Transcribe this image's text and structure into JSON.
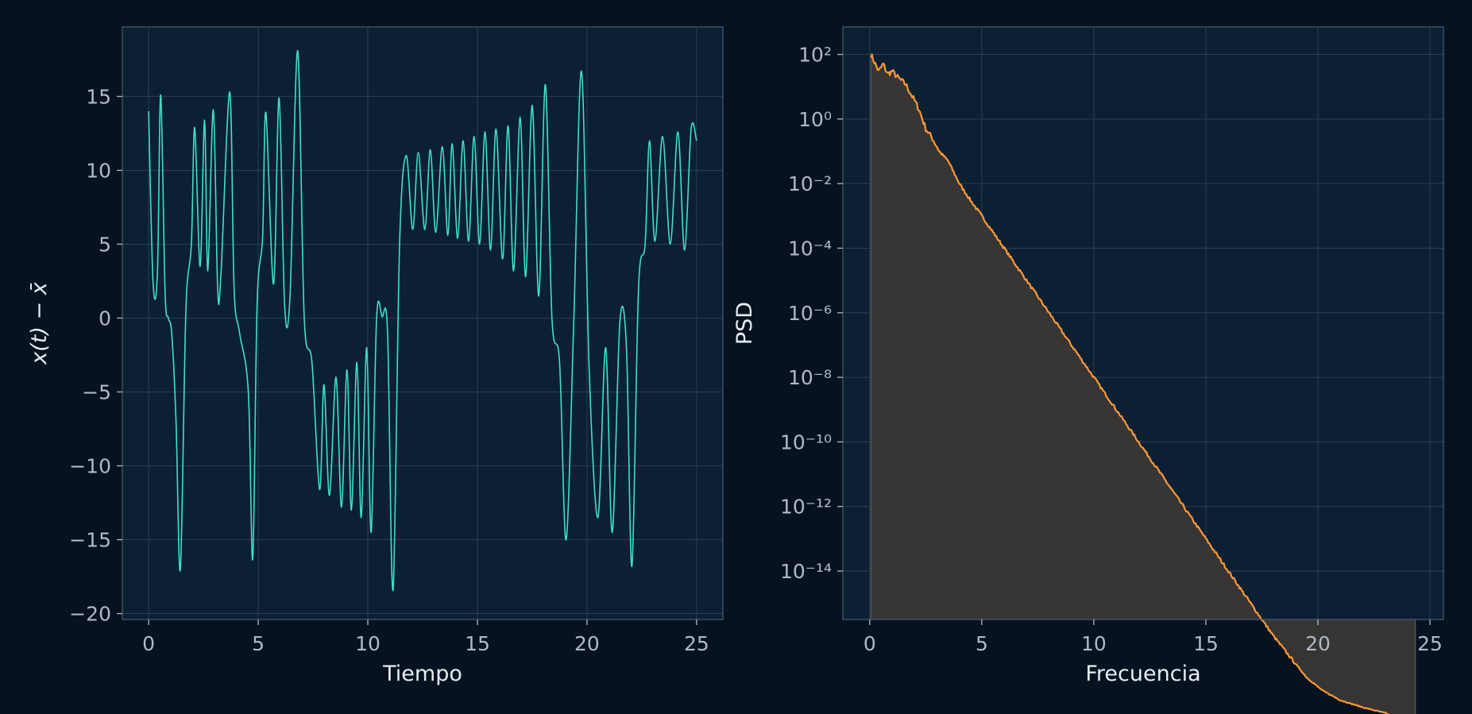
{
  "colors": {
    "figure_bg": "#06121f",
    "axes_bg": "#0c2033",
    "axes_edge": "#3a4f63",
    "grid": "#2b3f52",
    "tick_text": "#aebac7",
    "label_text": "#e6edf3",
    "timeseries": "#3fe0c5",
    "psd_line": "#ff9838",
    "psd_fill": "#3a3836"
  },
  "chart_data": [
    {
      "type": "line",
      "xlabel": "Tiempo",
      "ylabel": "x(t) − x̄",
      "xlim": [
        -1.2,
        26.2
      ],
      "ylim": [
        -20.4,
        19.7
      ],
      "xticks": [
        0,
        5,
        10,
        15,
        20,
        25
      ],
      "yticks": [
        -20,
        -15,
        -10,
        -5,
        0,
        5,
        10,
        15
      ],
      "xtick_labels": [
        "0",
        "5",
        "10",
        "15",
        "20",
        "25"
      ],
      "ytick_labels": [
        "−20",
        "−15",
        "−10",
        "−5",
        "0",
        "5",
        "10",
        "15"
      ],
      "grid": true,
      "series": [
        {
          "x": [
            0.0,
            0.2,
            0.4,
            0.55,
            0.75,
            0.9,
            1.05,
            1.25,
            1.45,
            1.7,
            1.95,
            2.1,
            2.35,
            2.55,
            2.7,
            2.95,
            3.15,
            3.3,
            3.7,
            3.9,
            4.15,
            4.55,
            4.75,
            4.95,
            5.2,
            5.35,
            5.7,
            5.95,
            6.2,
            6.45,
            6.8,
            7.1,
            7.45,
            7.8,
            8.0,
            8.25,
            8.55,
            8.8,
            9.05,
            9.25,
            9.5,
            9.7,
            9.95,
            10.15,
            10.4,
            10.65,
            10.9,
            11.15,
            11.45,
            11.75,
            12.05,
            12.3,
            12.6,
            12.85,
            13.1,
            13.4,
            13.65,
            13.85,
            14.1,
            14.35,
            14.6,
            14.85,
            15.1,
            15.35,
            15.6,
            15.85,
            16.15,
            16.4,
            16.65,
            16.95,
            17.2,
            17.5,
            17.8,
            18.1,
            18.4,
            18.75,
            19.05,
            19.4,
            19.75,
            20.1,
            20.5,
            20.85,
            21.15,
            21.5,
            21.8,
            22.05,
            22.35,
            22.65,
            22.85,
            23.1,
            23.45,
            23.8,
            24.15,
            24.45,
            24.75,
            25.0
          ],
          "y": [
            14.0,
            2.5,
            3.0,
            15.1,
            1.8,
            0.0,
            -1.0,
            -7.0,
            -17.0,
            0.5,
            5.0,
            12.9,
            3.5,
            13.4,
            3.2,
            14.1,
            2.0,
            3.0,
            15.3,
            2.0,
            -1.0,
            -5.0,
            -16.3,
            1.0,
            5.5,
            13.9,
            2.3,
            14.9,
            1.0,
            1.5,
            18.1,
            0.0,
            -3.0,
            -11.6,
            -4.5,
            -12.0,
            -4.0,
            -12.8,
            -3.5,
            -13.0,
            -3.0,
            -13.5,
            -2.0,
            -14.5,
            0.0,
            0.1,
            -1.0,
            -18.4,
            5.0,
            11.0,
            6.0,
            11.2,
            6.0,
            11.4,
            5.8,
            11.6,
            5.6,
            11.8,
            5.4,
            12.0,
            5.2,
            12.3,
            5.0,
            12.6,
            4.6,
            12.8,
            4.0,
            13.0,
            3.2,
            13.6,
            2.8,
            14.4,
            1.5,
            15.8,
            0.0,
            -3.0,
            -15.0,
            0.0,
            16.7,
            -3.5,
            -13.5,
            -2.0,
            -14.5,
            -0.3,
            -2.0,
            -16.8,
            2.0,
            5.0,
            12.0,
            5.2,
            12.3,
            5.0,
            12.6,
            4.6,
            12.8,
            12.0
          ],
          "note_hidden": ""
        }
      ]
    },
    {
      "type": "area",
      "xlabel": "Frecuencia",
      "ylabel": "PSD",
      "yscale": "log",
      "xlim": [
        -1.2,
        25.6
      ],
      "ylim_exp": [
        -15.5,
        2.85
      ],
      "xticks": [
        0,
        5,
        10,
        15,
        20,
        25
      ],
      "yticks_exp": [
        2,
        0,
        -2,
        -4,
        -6,
        -8,
        -10,
        -12,
        -14
      ],
      "xtick_labels": [
        "0",
        "5",
        "10",
        "15",
        "20",
        "25"
      ],
      "ytick_labels": [
        "10²",
        "10⁰",
        "10⁻²",
        "10⁻⁴",
        "10⁻⁶",
        "10⁻⁸",
        "10⁻¹⁰",
        "10⁻¹²",
        "10⁻¹⁴"
      ],
      "grid": true,
      "series": [
        {
          "x": [
            0.05,
            0.2,
            0.4,
            0.6,
            0.8,
            1.0,
            1.3,
            1.6,
            1.9,
            2.2,
            2.5,
            2.8,
            3.1,
            3.5,
            4.0,
            4.5,
            5.0,
            6.0,
            7.0,
            8.0,
            9.0,
            10.0,
            11.0,
            12.0,
            13.0,
            14.0,
            15.0,
            16.0,
            17.0,
            18.0,
            18.8,
            19.5,
            20.2,
            21.0,
            22.0,
            23.0,
            24.0,
            24.35
          ],
          "y": [
            100,
            60,
            30,
            50,
            25,
            30,
            18,
            12,
            5,
            2,
            0.5,
            0.25,
            0.1,
            0.05,
            0.01,
            0.003,
            0.001,
            0.0001,
            1e-05,
            1e-06,
            1e-07,
            1e-08,
            1e-09,
            1e-10,
            1e-11,
            1e-12,
            1e-13,
            1e-14,
            1e-15,
            1e-16,
            2e-17,
            5e-18,
            2e-18,
            1e-18,
            6e-19,
            4e-19,
            2e-19,
            1.5e-19
          ]
        }
      ]
    }
  ]
}
